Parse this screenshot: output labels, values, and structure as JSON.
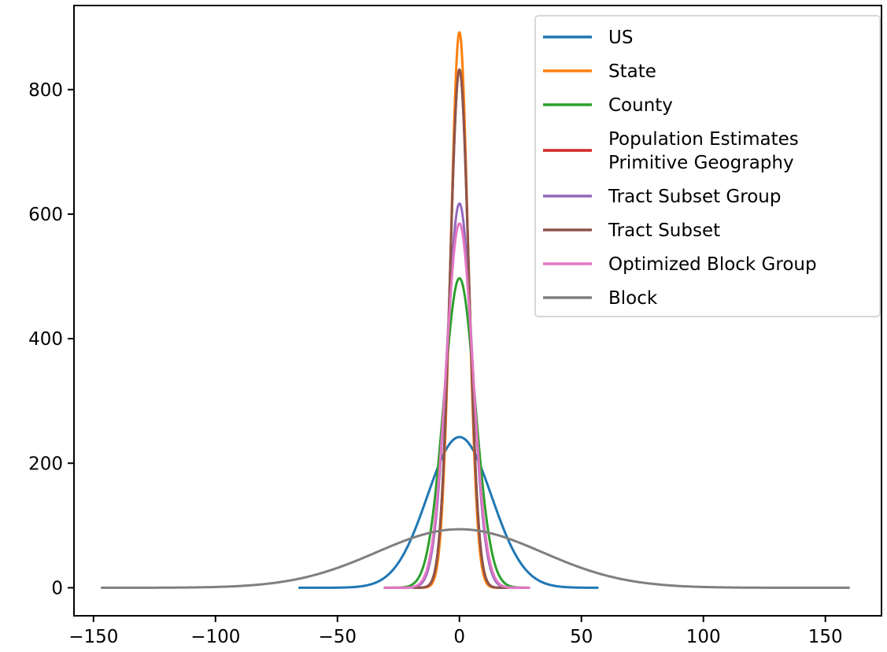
{
  "chart_data": {
    "type": "line",
    "title": "",
    "xlabel": "",
    "ylabel": "",
    "xlim": [
      -158,
      173
    ],
    "ylim": [
      -45,
      935
    ],
    "xticks": [
      -150,
      -100,
      -50,
      0,
      50,
      100,
      150
    ],
    "xtick_labels": [
      "−150",
      "−100",
      "−50",
      "0",
      "50",
      "100",
      "150"
    ],
    "yticks": [
      0,
      200,
      400,
      600,
      800
    ],
    "ytick_labels": [
      "0",
      "200",
      "400",
      "600",
      "800"
    ],
    "grid": false,
    "legend_position": "upper right",
    "series": [
      {
        "name": "US",
        "color": "#1f77b4",
        "peak": 242,
        "sigma": 13.2,
        "x_range": [
          -66,
          57
        ]
      },
      {
        "name": "State",
        "color": "#ff7f0e",
        "peak": 892,
        "sigma": 3.6,
        "x_range": [
          -19,
          20
        ]
      },
      {
        "name": "County",
        "color": "#2ca02c",
        "peak": 497,
        "sigma": 6.4,
        "x_range": [
          -31,
          28
        ]
      },
      {
        "name": "Population Estimates\nPrimitive Geography",
        "color": "#d62728",
        "peak": 832,
        "sigma": 3.85,
        "x_range": [
          -19,
          20
        ]
      },
      {
        "name": "Tract Subset Group",
        "color": "#9467bd",
        "peak": 617,
        "sigma": 5.2,
        "x_range": [
          -31,
          28
        ]
      },
      {
        "name": "Tract Subset",
        "color": "#8c564b",
        "peak": 832,
        "sigma": 3.85,
        "x_range": [
          -19,
          20
        ]
      },
      {
        "name": "Optimized Block Group",
        "color": "#e377c2",
        "peak": 585,
        "sigma": 5.45,
        "x_range": [
          -31,
          29
        ]
      },
      {
        "name": "Block",
        "color": "#7f7f7f",
        "peak": 94,
        "sigma": 34,
        "x_range": [
          -147,
          160
        ]
      }
    ]
  }
}
